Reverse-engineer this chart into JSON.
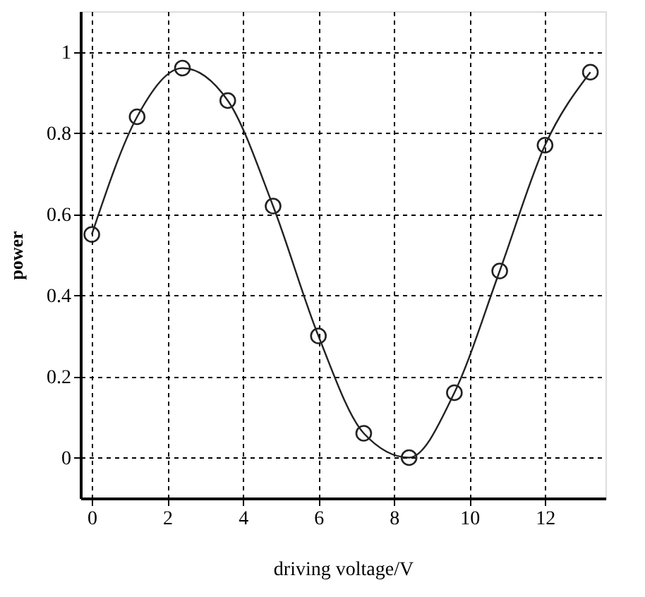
{
  "chart_data": {
    "type": "line",
    "xlabel": "driving voltage/V",
    "ylabel": "power",
    "x": [
      0,
      1.2,
      2.4,
      3.6,
      4.8,
      6.0,
      7.2,
      8.4,
      9.6,
      10.8,
      12,
      13.2
    ],
    "series": [
      {
        "color": "#222222",
        "values": [
          0.55,
          0.84,
          0.96,
          0.88,
          0.62,
          0.3,
          0.06,
          0.0,
          0.16,
          0.46,
          0.77,
          0.95
        ]
      }
    ],
    "xlim": [
      -0.3,
      13.6
    ],
    "ylim": [
      -0.1,
      1.1
    ],
    "xticks": [
      0,
      2,
      4,
      6,
      8,
      10,
      12
    ],
    "yticks": [
      0,
      {
        "value": 0.2,
        "label": "0.2"
      },
      {
        "value": 0.4,
        "label": "0.4"
      },
      {
        "value": 0.6,
        "label": "0.6"
      },
      {
        "value": 0.8,
        "label": "0.8"
      },
      1
    ],
    "grid": true,
    "marker": "circle",
    "line_style": "solid"
  }
}
